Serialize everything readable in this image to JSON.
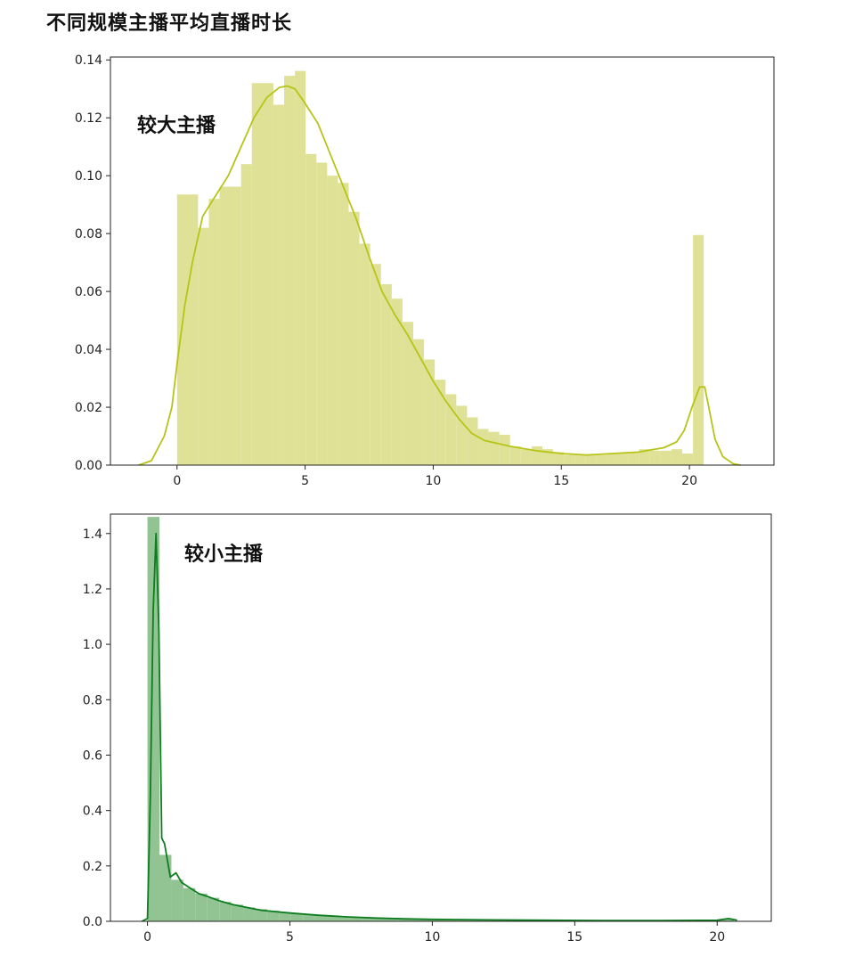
{
  "page": {
    "title": "不同规模主播平均直播时长"
  },
  "chart_data": [
    {
      "type": "bar",
      "subtype": "histogram-with-kde",
      "label": "较大主播",
      "colors": {
        "bar": "#dfe296",
        "line": "#b7c417"
      },
      "xlim": [
        -2.6,
        23.3
      ],
      "ylim": [
        0,
        0.141
      ],
      "xticks": [
        0,
        5,
        10,
        15,
        20
      ],
      "yticks": [
        0.0,
        0.02,
        0.04,
        0.06,
        0.08,
        0.1,
        0.12,
        0.14
      ],
      "ytick_labels": [
        "0.00",
        "0.02",
        "0.04",
        "0.06",
        "0.08",
        "0.10",
        "0.12",
        "0.14"
      ],
      "bin_edges": [
        0,
        0.82,
        1.24,
        1.66,
        2.5,
        2.92,
        3.76,
        4.18,
        4.6,
        5.02,
        5.44,
        5.86,
        6.28,
        6.7,
        7.12,
        7.54,
        7.96,
        8.38,
        8.8,
        9.22,
        9.64,
        10.06,
        10.48,
        10.9,
        11.32,
        11.74,
        12.16,
        12.58,
        13.0,
        13.42,
        13.84,
        14.26,
        14.68,
        15.1,
        15.52,
        15.94,
        16.36,
        16.78,
        17.2,
        17.62,
        18.04,
        18.46,
        18.88,
        19.3,
        19.72,
        20.14,
        20.56
      ],
      "bar_heights": [
        0.0935,
        0.082,
        0.092,
        0.0962,
        0.104,
        0.132,
        0.1245,
        0.1345,
        0.1362,
        0.1075,
        0.1045,
        0.1,
        0.0975,
        0.0875,
        0.0765,
        0.0695,
        0.0625,
        0.0575,
        0.0495,
        0.0435,
        0.0365,
        0.0295,
        0.0245,
        0.0205,
        0.0165,
        0.0125,
        0.0115,
        0.0105,
        0.0065,
        0.0055,
        0.0065,
        0.0055,
        0.0045,
        0.0035,
        0.0035,
        0.0035,
        0.0035,
        0.004,
        0.004,
        0.0045,
        0.0055,
        0.005,
        0.005,
        0.0055,
        0.004,
        0.0795
      ],
      "kde": {
        "x": [
          -1.5,
          -1.0,
          -0.5,
          -0.2,
          0.0,
          0.3,
          0.6,
          1.0,
          1.5,
          2.0,
          2.5,
          3.0,
          3.5,
          4.0,
          4.3,
          4.6,
          5.0,
          5.5,
          6.0,
          6.5,
          7.0,
          7.5,
          8.0,
          8.5,
          9.0,
          9.5,
          10.0,
          10.5,
          11.0,
          11.5,
          12.0,
          13.0,
          14.0,
          15.0,
          16.0,
          17.0,
          18.0,
          19.0,
          19.5,
          19.8,
          20.1,
          20.4,
          20.6,
          20.8,
          21.0,
          21.3,
          21.7,
          22.0
        ],
        "y": [
          0.0,
          0.0015,
          0.01,
          0.02,
          0.035,
          0.055,
          0.07,
          0.086,
          0.093,
          0.1,
          0.11,
          0.12,
          0.127,
          0.1305,
          0.131,
          0.13,
          0.125,
          0.118,
          0.107,
          0.096,
          0.085,
          0.072,
          0.06,
          0.052,
          0.045,
          0.037,
          0.029,
          0.022,
          0.016,
          0.011,
          0.0085,
          0.0065,
          0.005,
          0.004,
          0.0035,
          0.004,
          0.0045,
          0.006,
          0.008,
          0.012,
          0.02,
          0.027,
          0.027,
          0.018,
          0.009,
          0.003,
          0.0005,
          0.0
        ]
      }
    },
    {
      "type": "bar",
      "subtype": "histogram-with-kde",
      "label": "较小主播",
      "colors": {
        "bar": "#92c493",
        "line": "#0e7d20"
      },
      "xlim": [
        -1.3,
        21.9
      ],
      "ylim": [
        0,
        1.47
      ],
      "xticks": [
        0,
        5,
        10,
        15,
        20
      ],
      "yticks": [
        0.0,
        0.2,
        0.4,
        0.6,
        0.8,
        1.0,
        1.2,
        1.4
      ],
      "ytick_labels": [
        "0.0",
        "0.2",
        "0.4",
        "0.6",
        "0.8",
        "1.0",
        "1.2",
        "1.4"
      ],
      "bin_edges": [
        0,
        0.42,
        0.84,
        1.26,
        1.68,
        2.1,
        2.52,
        2.94,
        3.36,
        3.78,
        4.2,
        4.62,
        5.04,
        5.46,
        5.88,
        6.3,
        6.72,
        7.14,
        7.56,
        7.98,
        8.4,
        8.82,
        9.24,
        9.66,
        10.08,
        10.5,
        10.92,
        11.34,
        11.76,
        12.18,
        12.6,
        13.02,
        13.44,
        13.86,
        14.28,
        14.7,
        15.12,
        15.54,
        15.96,
        16.38,
        16.8,
        17.22,
        17.64,
        18.06,
        18.48,
        18.9,
        19.32,
        19.74,
        20.16,
        20.58
      ],
      "bar_heights": [
        1.46,
        0.24,
        0.15,
        0.12,
        0.1,
        0.085,
        0.07,
        0.06,
        0.05,
        0.044,
        0.038,
        0.033,
        0.028,
        0.025,
        0.022,
        0.019,
        0.016,
        0.014,
        0.012,
        0.011,
        0.01,
        0.009,
        0.008,
        0.007,
        0.007,
        0.006,
        0.006,
        0.005,
        0.005,
        0.005,
        0.004,
        0.004,
        0.004,
        0.004,
        0.003,
        0.003,
        0.003,
        0.003,
        0.003,
        0.003,
        0.003,
        0.003,
        0.003,
        0.003,
        0.003,
        0.003,
        0.003,
        0.004,
        0.01
      ],
      "kde": {
        "x": [
          -0.2,
          0.0,
          0.1,
          0.2,
          0.3,
          0.4,
          0.5,
          0.6,
          0.8,
          1.0,
          1.2,
          1.5,
          1.8,
          2.1,
          2.5,
          3.0,
          3.5,
          4.0,
          5.0,
          6.0,
          7.0,
          8.0,
          9.0,
          10.0,
          12.0,
          14.0,
          16.0,
          18.0,
          20.0,
          20.4,
          20.7
        ],
        "y": [
          0.0,
          0.01,
          0.45,
          1.12,
          1.4,
          1.05,
          0.3,
          0.28,
          0.16,
          0.175,
          0.14,
          0.12,
          0.1,
          0.09,
          0.075,
          0.06,
          0.05,
          0.04,
          0.03,
          0.022,
          0.016,
          0.012,
          0.009,
          0.007,
          0.005,
          0.004,
          0.003,
          0.003,
          0.004,
          0.01,
          0.004
        ]
      }
    }
  ]
}
